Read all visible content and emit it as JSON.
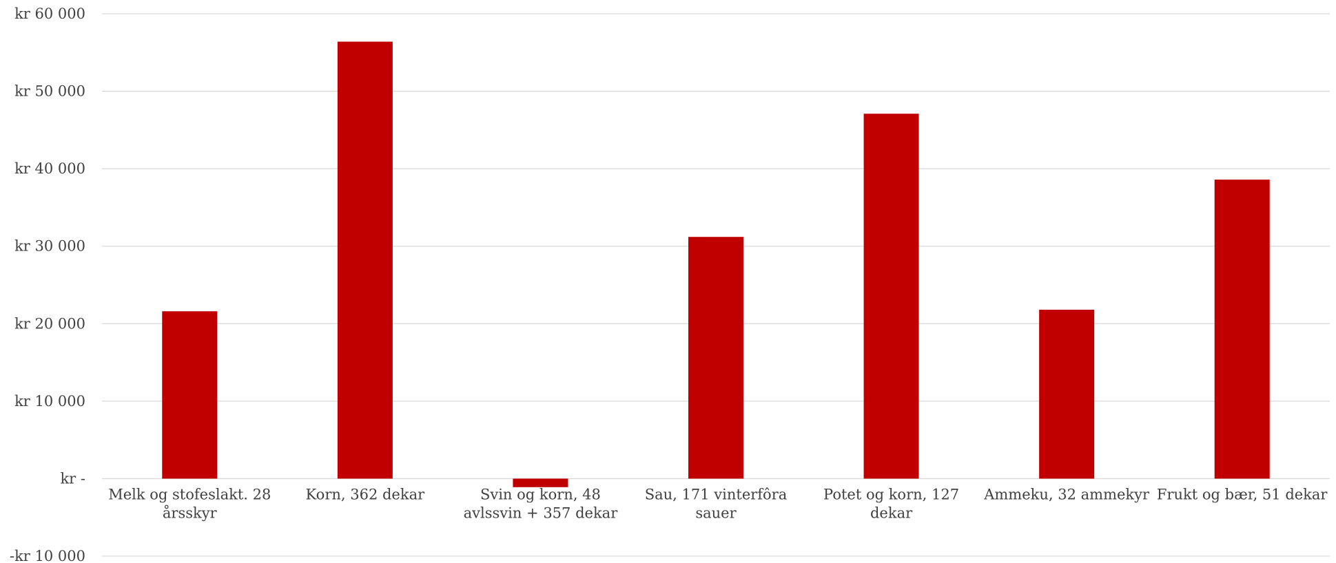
{
  "chart_data": {
    "type": "bar",
    "title": "",
    "xlabel": "",
    "ylabel": "",
    "ylim": [
      -10000,
      60000
    ],
    "yticks": [
      -10000,
      0,
      10000,
      20000,
      30000,
      40000,
      50000,
      60000
    ],
    "ytick_labels": [
      "-kr 10 000",
      "kr -",
      "kr 10 000",
      "kr 20 000",
      "kr 30 000",
      "kr 40 000",
      "kr 50 000",
      "kr 60 000"
    ],
    "grid": true,
    "categories": [
      [
        "Melk og stofeslakt. 28",
        "årsskyr"
      ],
      [
        "Korn, 362 dekar"
      ],
      [
        "Svin og korn, 48",
        "avlssvin + 357 dekar"
      ],
      [
        "Sau, 171 vinterfôra",
        "sauer"
      ],
      [
        "Potet og korn, 127",
        "dekar"
      ],
      [
        "Ammeku, 32 ammekyr"
      ],
      [
        "Frukt og bær, 51 dekar"
      ]
    ],
    "values": [
      21600,
      56400,
      -1100,
      31200,
      47100,
      21800,
      38600
    ],
    "colors": {
      "bar": "#c00000",
      "grid": "#d9d9d9",
      "text": "#404040"
    }
  }
}
